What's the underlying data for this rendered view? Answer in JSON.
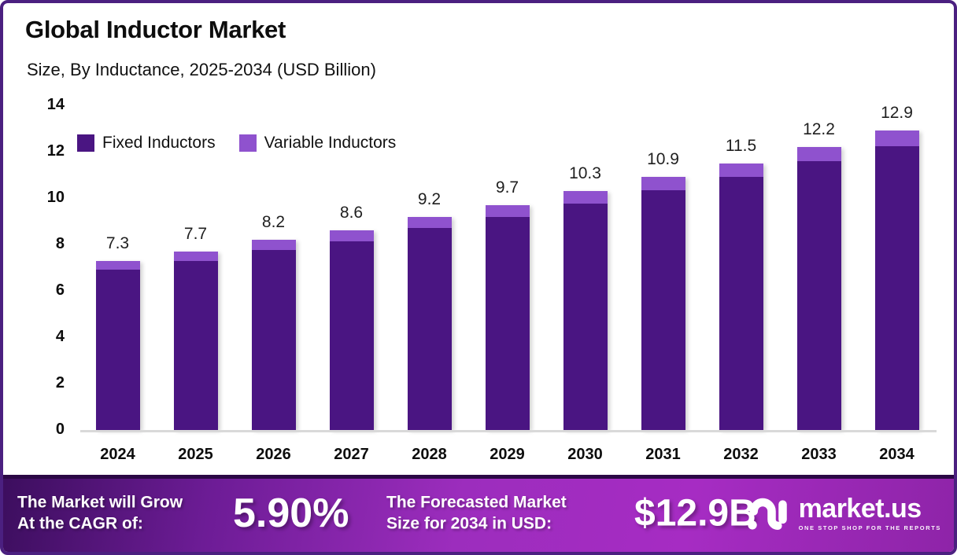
{
  "header": {
    "title": "Global Inductor Market",
    "subtitle": "Size, By Inductance, 2025-2034 (USD Billion)"
  },
  "chart_data": {
    "type": "bar",
    "stacked": true,
    "categories": [
      "2024",
      "2025",
      "2026",
      "2027",
      "2028",
      "2029",
      "2030",
      "2031",
      "2032",
      "2033",
      "2034"
    ],
    "series": [
      {
        "name": "Fixed Inductors",
        "color": "#4a1582",
        "values": [
          6.9,
          7.3,
          7.75,
          8.15,
          8.7,
          9.2,
          9.75,
          10.35,
          10.9,
          11.6,
          12.25
        ]
      },
      {
        "name": "Variable Inductors",
        "color": "#8f52ce",
        "values": [
          0.4,
          0.4,
          0.45,
          0.45,
          0.5,
          0.5,
          0.55,
          0.55,
          0.6,
          0.6,
          0.65
        ]
      }
    ],
    "totals": [
      7.3,
      7.7,
      8.2,
      8.6,
      9.2,
      9.7,
      10.3,
      10.9,
      11.5,
      12.2,
      12.9
    ],
    "total_labels": [
      "7.3",
      "7.7",
      "8.2",
      "8.6",
      "9.2",
      "9.7",
      "10.3",
      "10.9",
      "11.5",
      "12.2",
      "12.9"
    ],
    "ylabel": "",
    "xlabel": "",
    "ylim": [
      0,
      14
    ],
    "yticks": [
      0,
      2,
      4,
      6,
      8,
      10,
      12,
      14
    ],
    "grid": false,
    "legend_position": "top-left-inside"
  },
  "footer": {
    "cagr_label_line1": "The Market will Grow",
    "cagr_label_line2": "At the CAGR of:",
    "cagr_value": "5.90%",
    "forecast_label_line1": "The Forecasted Market",
    "forecast_label_line2": "Size for 2034 in USD:",
    "forecast_value": "$12.9B",
    "logo_text": "market.us",
    "logo_tagline": "ONE STOP SHOP FOR THE REPORTS"
  },
  "colors": {
    "frame_border": "#4b2080",
    "banner_dark": "#3c0e5e",
    "banner_bright": "#a62cc3",
    "baseline": "#d9d9d9"
  }
}
